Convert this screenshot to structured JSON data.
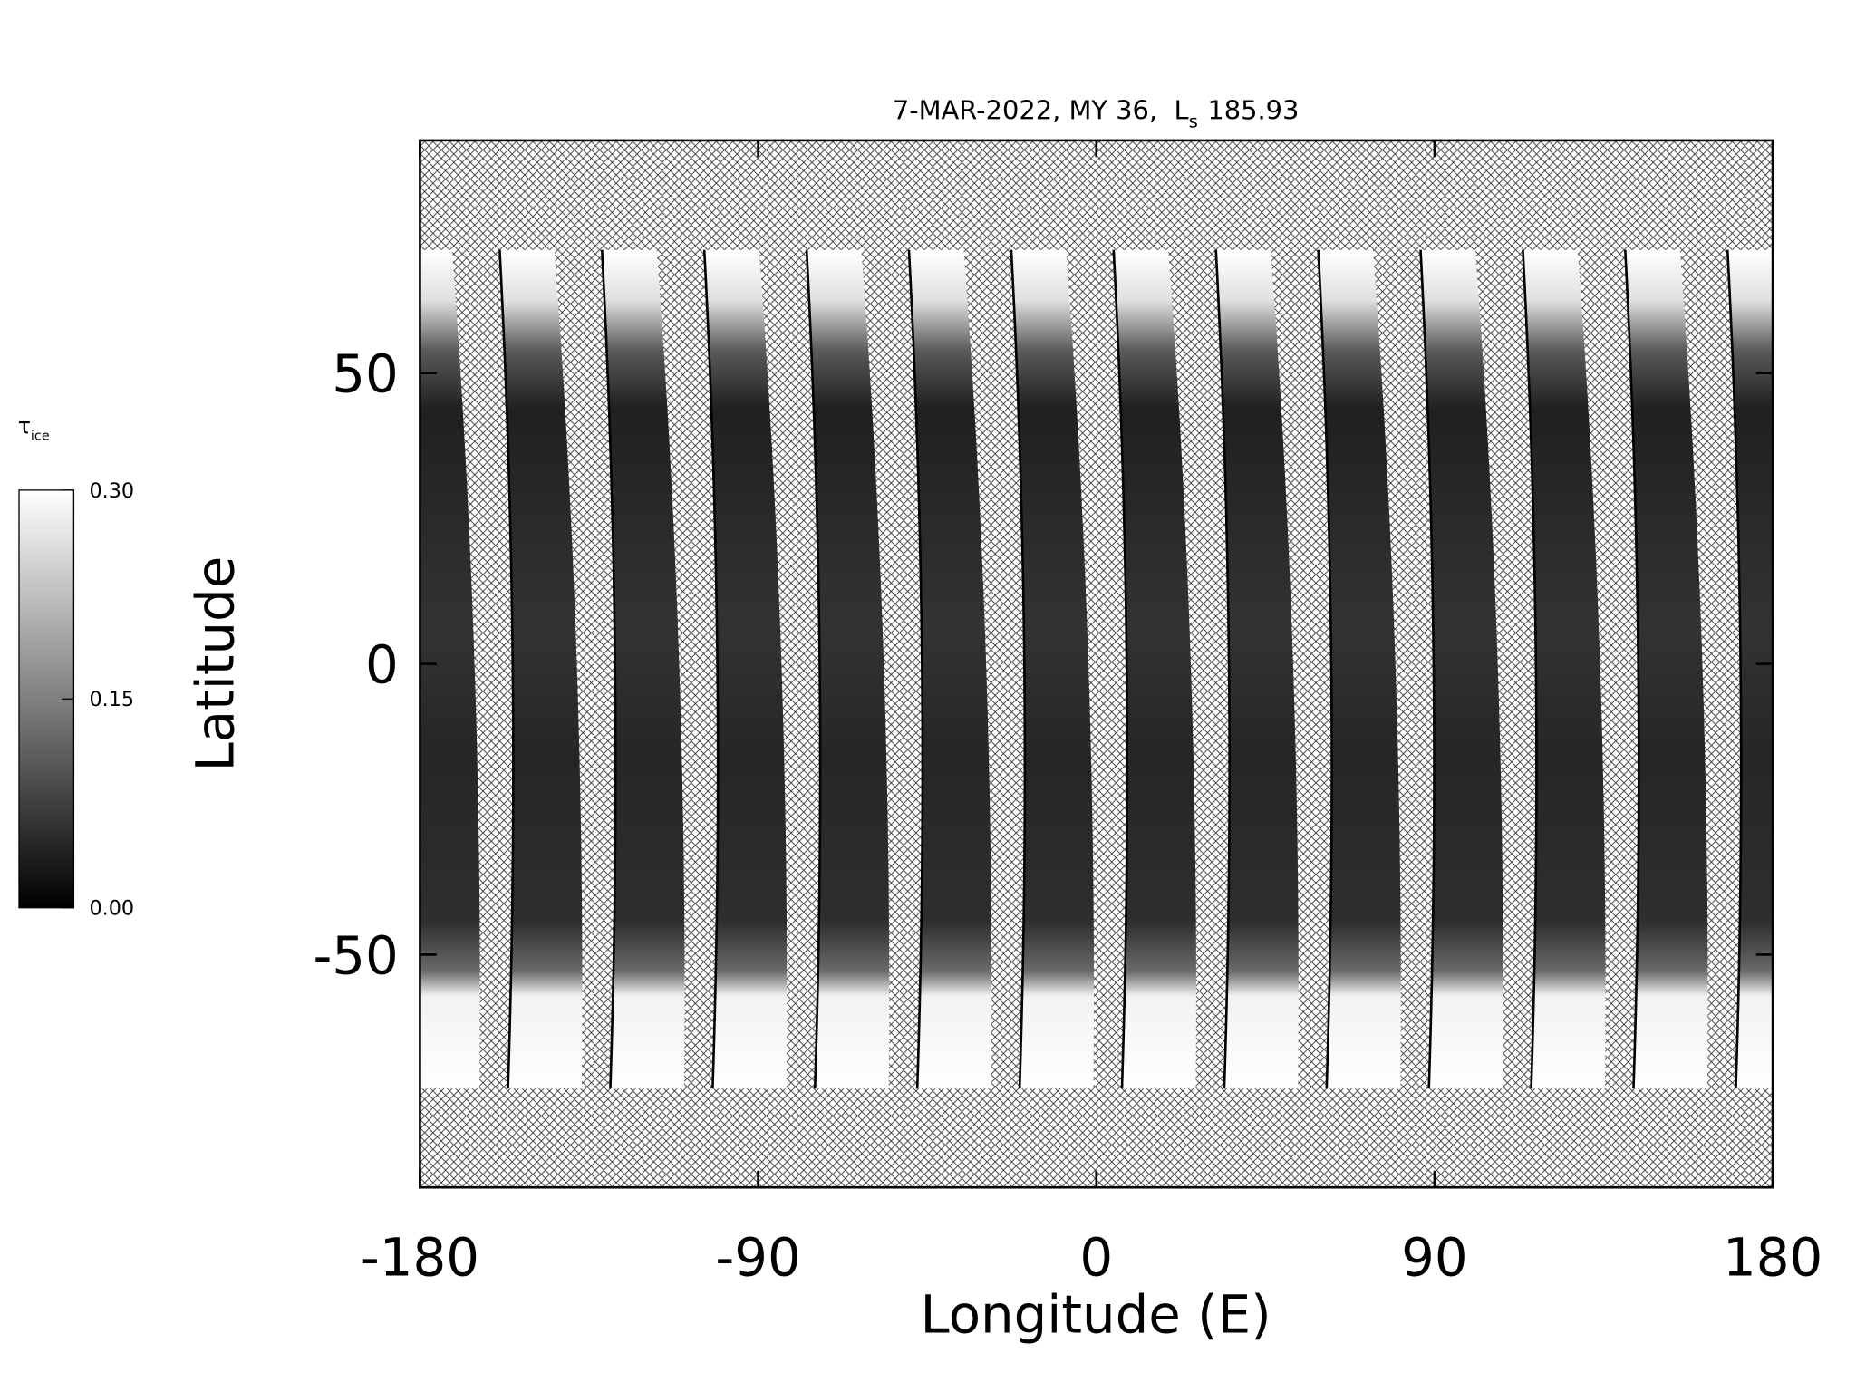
{
  "chart_data": {
    "type": "map",
    "title_prefix": "7-MAR-2022, MY 36,",
    "title_symbol": "L",
    "title_subscript": "s",
    "title_value": 185.93,
    "xlabel": "Longitude (E)",
    "ylabel": "Latitude",
    "xlim": [
      -180,
      180
    ],
    "ylim": [
      -90,
      90
    ],
    "xticks": [
      -180,
      -90,
      0,
      90,
      180
    ],
    "yticks": [
      -50,
      0,
      50
    ],
    "colorbar": {
      "label": "τ",
      "label_subscript": "ice",
      "range": [
        0,
        0.3
      ],
      "colors": [
        "#000000",
        "#ffffff"
      ],
      "ticks": [
        {
          "value": 0,
          "label": "0.00"
        },
        {
          "value": 0.15,
          "label": "0.15"
        },
        {
          "value": 0.3,
          "label": "0.30"
        }
      ]
    }
  }
}
